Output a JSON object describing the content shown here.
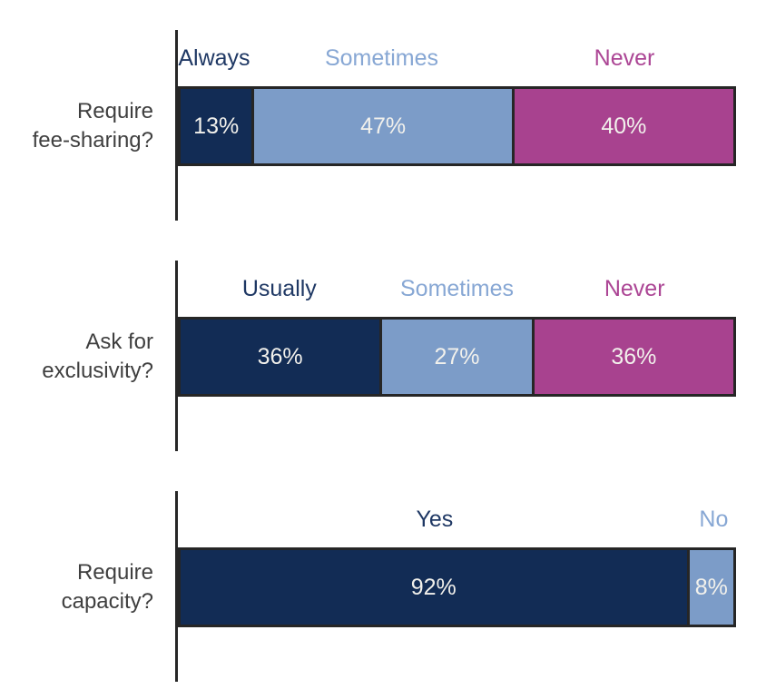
{
  "figure": {
    "charts": [
      {
        "id": "fee-sharing",
        "title_lines": [
          "Require",
          "fee-sharing?"
        ],
        "segments": [
          {
            "label": "Always",
            "value": 13,
            "value_label": "13%",
            "role": "navy"
          },
          {
            "label": "Sometimes",
            "value": 47,
            "value_label": "47%",
            "role": "blue"
          },
          {
            "label": "Never",
            "value": 40,
            "value_label": "40%",
            "role": "magenta"
          }
        ]
      },
      {
        "id": "exclusivity",
        "title_lines": [
          "Ask for",
          "exclusivity?"
        ],
        "segments": [
          {
            "label": "Usually",
            "value": 36,
            "value_label": "36%",
            "role": "navy"
          },
          {
            "label": "Sometimes",
            "value": 27,
            "value_label": "27%",
            "role": "blue"
          },
          {
            "label": "Never",
            "value": 36,
            "value_label": "36%",
            "role": "magenta"
          }
        ]
      },
      {
        "id": "capacity",
        "title_lines": [
          "Require",
          "capacity?"
        ],
        "segments": [
          {
            "label": "Yes",
            "value": 92,
            "value_label": "92%",
            "role": "navy"
          },
          {
            "label": "No",
            "value": 8,
            "value_label": "8%",
            "role": "blue"
          }
        ]
      }
    ]
  },
  "colors": {
    "navy": "#122C55",
    "blue": "#7C9CC8",
    "magenta": "#A8428F",
    "border": "#262626",
    "axis": "#262626",
    "title_text": "#3F3F3F",
    "value_text": "#F2F1EC",
    "label_navy": "#1F3864",
    "label_blue": "#87A7D4",
    "label_magenta": "#AC4695"
  },
  "chart_data": [
    {
      "type": "bar",
      "orientation": "horizontal",
      "stacked": true,
      "title": "Require fee-sharing?",
      "categories": [
        "Always",
        "Sometimes",
        "Never"
      ],
      "values": [
        13,
        47,
        40
      ],
      "unit": "percent",
      "xlim": [
        0,
        100
      ],
      "grid": false,
      "legend_position": "labels-above-bar",
      "series_colors": [
        "#122C55",
        "#7C9CC8",
        "#A8428F"
      ]
    },
    {
      "type": "bar",
      "orientation": "horizontal",
      "stacked": true,
      "title": "Ask for exclusivity?",
      "categories": [
        "Usually",
        "Sometimes",
        "Never"
      ],
      "values": [
        36,
        27,
        36
      ],
      "unit": "percent",
      "xlim": [
        0,
        100
      ],
      "grid": false,
      "legend_position": "labels-above-bar",
      "series_colors": [
        "#122C55",
        "#7C9CC8",
        "#A8428F"
      ]
    },
    {
      "type": "bar",
      "orientation": "horizontal",
      "stacked": true,
      "title": "Require capacity?",
      "categories": [
        "Yes",
        "No"
      ],
      "values": [
        92,
        8
      ],
      "unit": "percent",
      "xlim": [
        0,
        100
      ],
      "grid": false,
      "legend_position": "labels-above-bar",
      "series_colors": [
        "#122C55",
        "#7C9CC8"
      ]
    }
  ]
}
